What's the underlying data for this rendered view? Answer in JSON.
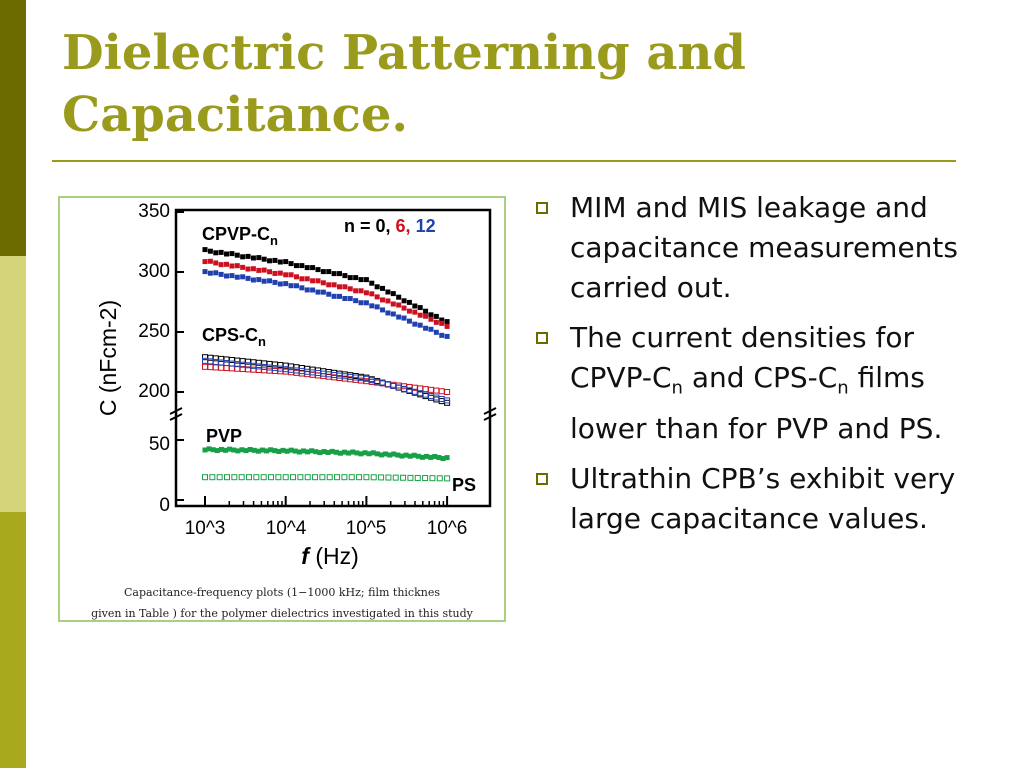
{
  "slide": {
    "title_line1": "Dielectric Patterning and",
    "title_line2": "Capacitance."
  },
  "theme": {
    "accent": "#9a9a1c",
    "sidebar_dark": "#6b6b00",
    "sidebar_light": "#d4d47a",
    "sidebar_mid": "#a9a91e"
  },
  "figure": {
    "caption_line1": "Capacitance-frequency plots (1−1000 kHz; film thicknes",
    "caption_line2": "given in Table   ) for the polymer dielectrics investigated in this study"
  },
  "chart_data": {
    "type": "scatter",
    "xlabel_f": "f",
    "xlabel_unit": "(Hz)",
    "ylabel": "C (nFcm-2)",
    "x_scale": "log",
    "x_ticks": [
      "10^3",
      "10^4",
      "10^5",
      "10^6"
    ],
    "y_ticks": [
      "350",
      "300",
      "250",
      "200",
      "50",
      "0"
    ],
    "y_axis_break": true,
    "legend": {
      "prefix": "n = ",
      "n0": "0,",
      "n6": "6,",
      "n12": "12",
      "placement": "top-right"
    },
    "labels": {
      "cpvp": "CPVP-C",
      "cps": "CPS-C",
      "sub": "n",
      "pvp": "PVP",
      "ps": "PS"
    },
    "colors": {
      "n0": "#000000",
      "n6": "#cc1020",
      "n12": "#2040b0",
      "pvp": "#18a048",
      "ps": "#18a048"
    },
    "series": [
      {
        "group": "CPVP-Cn",
        "n": 0,
        "x": [
          1000,
          10000,
          100000,
          1000000
        ],
        "y": [
          318,
          308,
          293,
          258
        ]
      },
      {
        "group": "CPVP-Cn",
        "n": 6,
        "x": [
          1000,
          10000,
          100000,
          1000000
        ],
        "y": [
          309,
          298,
          283,
          255
        ]
      },
      {
        "group": "CPVP-Cn",
        "n": 12,
        "x": [
          1000,
          10000,
          100000,
          1000000
        ],
        "y": [
          300,
          290,
          274,
          246
        ]
      },
      {
        "group": "CPS-Cn",
        "n": 0,
        "x": [
          1000,
          10000,
          100000,
          1000000
        ],
        "y": [
          229,
          222,
          212,
          191
        ]
      },
      {
        "group": "CPS-Cn",
        "n": 6,
        "x": [
          1000,
          10000,
          100000,
          1000000
        ],
        "y": [
          221,
          217,
          209,
          200
        ]
      },
      {
        "group": "CPS-Cn",
        "n": 12,
        "x": [
          1000,
          10000,
          100000,
          1000000
        ],
        "y": [
          226,
          219,
          211,
          193
        ]
      },
      {
        "group": "PVP",
        "x": [
          1000,
          10000,
          100000,
          1000000
        ],
        "y": [
          42,
          41,
          39,
          35
        ]
      },
      {
        "group": "PS",
        "x": [
          1000,
          10000,
          100000,
          1000000
        ],
        "y": [
          19,
          19,
          19,
          18
        ]
      }
    ]
  },
  "bullets": [
    {
      "text": "MIM and MIS leakage and capacitance measurements carried out."
    },
    {
      "part1": "The current densities for CPVP-C",
      "sub1": "n",
      "part2": " and CPS-C",
      "sub2": "n",
      "part3": " films lower than for PVP and PS."
    },
    {
      "text": "Ultrathin CPB’s exhibit very large capacitance values."
    }
  ]
}
